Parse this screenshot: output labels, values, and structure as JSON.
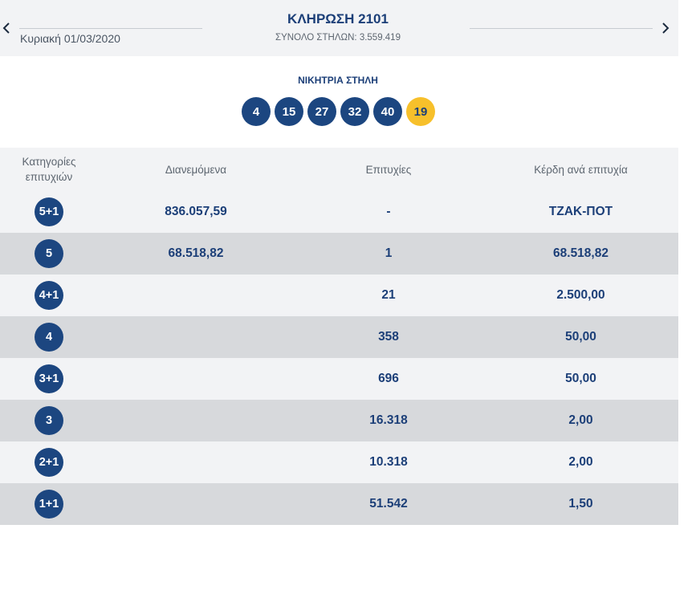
{
  "header": {
    "prev_icon": "chevron-left-icon",
    "next_icon": "chevron-right-icon",
    "date": "Κυριακή 01/03/2020",
    "draw_title": "ΚΛΗΡΩΣΗ 2101",
    "total_columns": "ΣΥΝΟΛΟ ΣΤΗΛΩΝ: 3.559.419"
  },
  "winning": {
    "label": "ΝΙΚΗΤΡΙΑ ΣΤΗΛΗ",
    "numbers": [
      "4",
      "15",
      "27",
      "32",
      "40"
    ],
    "joker": "19"
  },
  "table": {
    "headers": {
      "category_line1": "Κατηγορίες",
      "category_line2": "επιτυχιών",
      "distributed": "Διανεμόμενα",
      "winners": "Επιτυχίες",
      "prize_per_winner": "Κέρδη ανά επιτυχία"
    },
    "rows": [
      {
        "category": "5+1",
        "distributed": "836.057,59",
        "winners": "-",
        "prize": "ΤΖΑΚ-ΠΟΤ"
      },
      {
        "category": "5",
        "distributed": "68.518,82",
        "winners": "1",
        "prize": "68.518,82"
      },
      {
        "category": "4+1",
        "distributed": "",
        "winners": "21",
        "prize": "2.500,00"
      },
      {
        "category": "4",
        "distributed": "",
        "winners": "358",
        "prize": "50,00"
      },
      {
        "category": "3+1",
        "distributed": "",
        "winners": "696",
        "prize": "50,00"
      },
      {
        "category": "3",
        "distributed": "",
        "winners": "16.318",
        "prize": "2,00"
      },
      {
        "category": "2+1",
        "distributed": "",
        "winners": "10.318",
        "prize": "2,00"
      },
      {
        "category": "1+1",
        "distributed": "",
        "winners": "51.542",
        "prize": "1,50"
      }
    ]
  },
  "colors": {
    "primary": "#1c3f78",
    "ball": "#1c4680",
    "joker": "#f7c02b",
    "row_light": "#f2f3f5",
    "row_dark": "#d7d9dc"
  }
}
